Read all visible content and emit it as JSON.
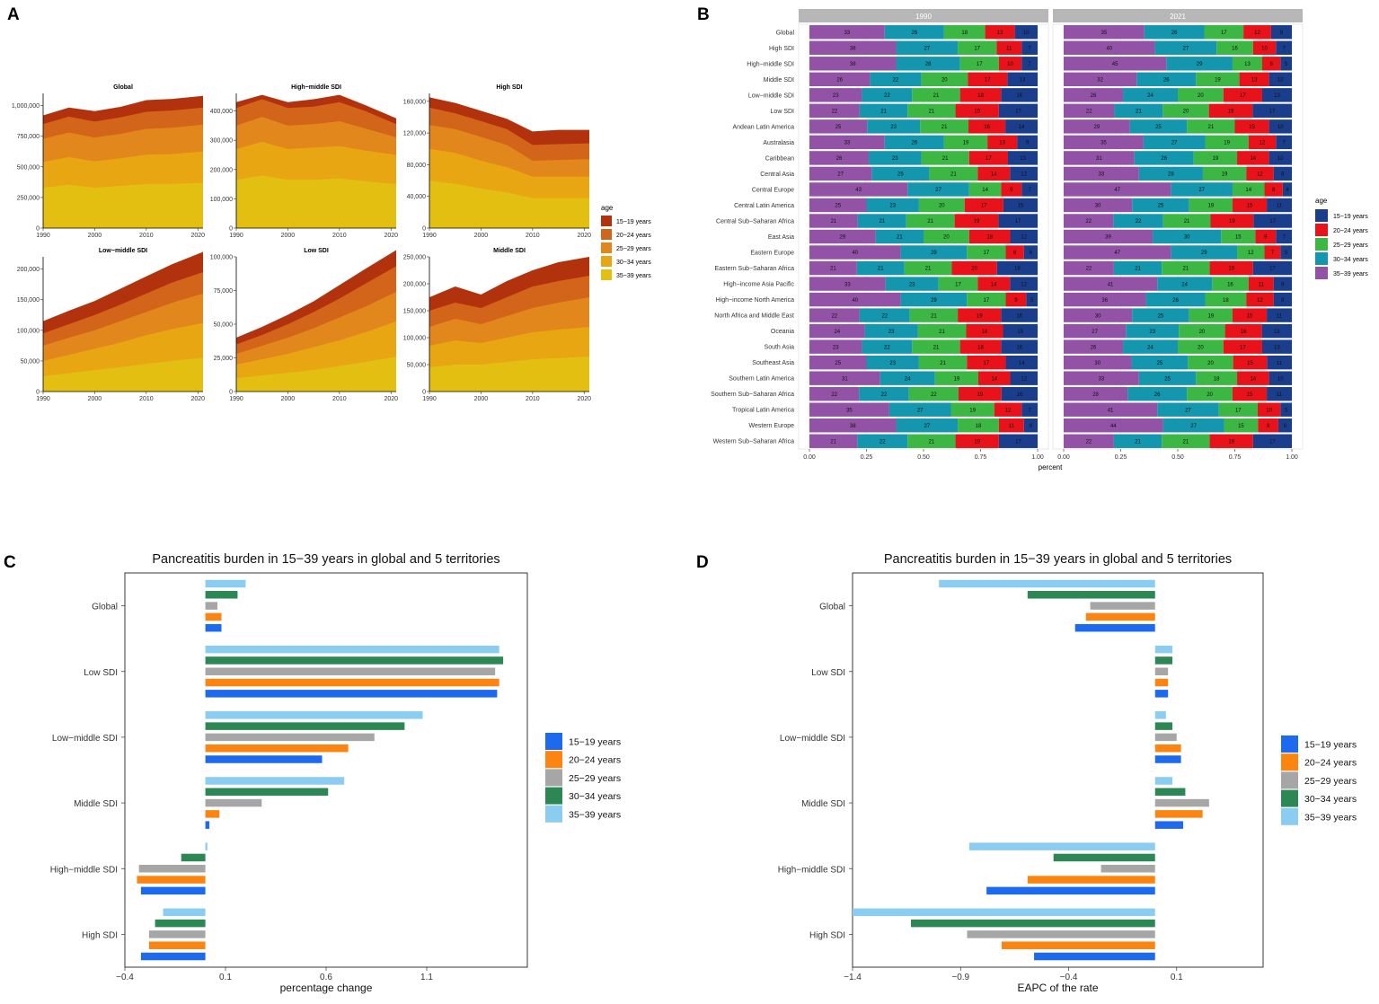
{
  "colors": {
    "age_15_19": "#B3320E",
    "age_20_24": "#D2651A",
    "age_25_29": "#E2871C",
    "age_30_34": "#E8A613",
    "age_35_39": "#E3BF12",
    "bar_15_19": "#1A3E8C",
    "bar_20_24": "#E8131A",
    "bar_25_29": "#3CB744",
    "bar_30_34": "#1496AE",
    "bar_35_39": "#9252A6",
    "c_15_19": "#1D6AEF",
    "c_20_24": "#FC8410",
    "c_25_29": "#A6A6A6",
    "c_30_34": "#2D8754",
    "c_35_39": "#8ACDF1",
    "strip": "#B7B7B7"
  },
  "chart_data": [
    {
      "panel": "A",
      "type": "area",
      "stacked": true,
      "legend_title": "age",
      "legend": [
        "15−19 years",
        "20−24 years",
        "25−29 years",
        "30−34 years",
        "35−39 years"
      ],
      "x": [
        1990,
        1995,
        2000,
        2005,
        2010,
        2015,
        2021
      ],
      "xticks": [
        "1990",
        "2000",
        "2010",
        "2020"
      ],
      "facets": [
        {
          "title": "Global",
          "ylim": [
            0,
            1100000
          ],
          "yticks": [
            "0",
            "250,000",
            "500,000",
            "750,000",
            "1,000,000"
          ],
          "ytickvals": [
            0,
            250000,
            500000,
            750000,
            1000000
          ],
          "cum": [
            [
              330000,
              355000,
              330000,
              345000,
              360000,
              360000,
              370000
            ],
            [
              540000,
              580000,
              545000,
              570000,
              600000,
              605000,
              625000
            ],
            [
              730000,
              780000,
              740000,
              770000,
              810000,
              820000,
              845000
            ],
            [
              850000,
              910000,
              870000,
              905000,
              950000,
              960000,
              985000
            ],
            [
              920000,
              985000,
              955000,
              990000,
              1045000,
              1055000,
              1080000
            ]
          ]
        },
        {
          "title": "High−middle SDI",
          "ylim": [
            0,
            460000
          ],
          "yticks": [
            "0",
            "100,000",
            "200,000",
            "300,000",
            "400,000"
          ],
          "ytickvals": [
            0,
            100000,
            200000,
            300000,
            400000
          ],
          "cum": [
            [
              165000,
              180000,
              165000,
              165000,
              170000,
              160000,
              150000
            ],
            [
              270000,
              295000,
              270000,
              275000,
              280000,
              265000,
              250000
            ],
            [
              350000,
              380000,
              350000,
              355000,
              365000,
              340000,
              310000
            ],
            [
              410000,
              440000,
              410000,
              415000,
              430000,
              400000,
              355000
            ],
            [
              430000,
              455000,
              430000,
              440000,
              455000,
              420000,
              375000
            ]
          ]
        },
        {
          "title": "High SDI",
          "ylim": [
            0,
            170000
          ],
          "yticks": [
            "0",
            "40,000",
            "80,000",
            "120,000",
            "160,000"
          ],
          "ytickvals": [
            0,
            40000,
            80000,
            120000,
            160000
          ],
          "cum": [
            [
              60000,
              56000,
              50000,
              45000,
              38000,
              38000,
              38000
            ],
            [
              100000,
              95000,
              85000,
              77000,
              65000,
              65000,
              65000
            ],
            [
              130000,
              125000,
              115000,
              105000,
              85000,
              86000,
              87000
            ],
            [
              152000,
              145000,
              135000,
              125000,
              105000,
              106000,
              107000
            ],
            [
              165000,
              158000,
              148000,
              138000,
              122000,
              124000,
              124000
            ]
          ]
        },
        {
          "title": "Low−middle SDI",
          "ylim": [
            0,
            220000
          ],
          "yticks": [
            "0",
            "50,000",
            "100,000",
            "150,000",
            "200,000"
          ],
          "ytickvals": [
            0,
            50000,
            100000,
            150000,
            200000
          ],
          "cum": [
            [
              25000,
              30000,
              35000,
              40000,
              45000,
              50000,
              55000
            ],
            [
              50000,
              60000,
              70000,
              80000,
              92000,
              102000,
              112000
            ],
            [
              75000,
              88000,
              100000,
              115000,
              130000,
              145000,
              160000
            ],
            [
              95000,
              110000,
              125000,
              142000,
              160000,
              178000,
              195000
            ],
            [
              115000,
              132000,
              148000,
              168000,
              188000,
              208000,
              228000
            ]
          ]
        },
        {
          "title": "Low SDI",
          "ylim": [
            0,
            100000
          ],
          "yticks": [
            "0",
            "25,000",
            "50,000",
            "75,000",
            "100,000"
          ],
          "ytickvals": [
            0,
            25000,
            50000,
            75000,
            100000
          ],
          "cum": [
            [
              10000,
              12000,
              14000,
              16000,
              19000,
              22000,
              26000
            ],
            [
              20000,
              24000,
              28000,
              33000,
              38000,
              44000,
              52000
            ],
            [
              28000,
              34000,
              40000,
              47000,
              55000,
              63000,
              74000
            ],
            [
              35000,
              42000,
              50000,
              59000,
              69000,
              80000,
              93000
            ],
            [
              40000,
              48000,
              57000,
              67000,
              79000,
              91000,
              105000
            ]
          ]
        },
        {
          "title": "Middle SDI",
          "ylim": [
            0,
            250000
          ],
          "yticks": [
            "0",
            "50,000",
            "100,000",
            "150,000",
            "200,000",
            "250,000"
          ],
          "ytickvals": [
            0,
            50000,
            100000,
            150000,
            200000,
            250000
          ],
          "cum": [
            [
              45000,
              50000,
              50000,
              55000,
              60000,
              62000,
              65000
            ],
            [
              85000,
              95000,
              90000,
              100000,
              110000,
              115000,
              120000
            ],
            [
              120000,
              135000,
              125000,
              140000,
              155000,
              165000,
              175000
            ],
            [
              150000,
              165000,
              155000,
              175000,
              195000,
              205000,
              215000
            ],
            [
              175000,
              195000,
              180000,
              205000,
              225000,
              240000,
              250000
            ]
          ]
        }
      ]
    },
    {
      "panel": "B",
      "type": "bar",
      "stacked": true,
      "orientation": "horizontal",
      "xlabel": "percent",
      "xlim": [
        0,
        1
      ],
      "xticks": [
        "0.00",
        "0.25",
        "0.50",
        "0.75",
        "1.00"
      ],
      "legend_title": "age",
      "legend": [
        "15−19 years",
        "20−24 years",
        "25−29 years",
        "30−34 years",
        "35−39 years"
      ],
      "segment_order": [
        "35−39 years",
        "30−34 years",
        "25−29 years",
        "20−24 years",
        "15−19 years"
      ],
      "facets": [
        "1990",
        "2021"
      ],
      "categories": [
        "Global",
        "High SDI",
        "High−middle SDI",
        "Middle SDI",
        "Low−middle SDI",
        "Low SDI",
        "Andean Latin America",
        "Australasia",
        "Caribbean",
        "Central Asia",
        "Central Europe",
        "Central Latin America",
        "Central Sub−Saharan Africa",
        "East Asia",
        "Eastern Europe",
        "Eastern Sub−Saharan Africa",
        "High−income Asia Pacific",
        "High−income North America",
        "North Africa and Middle East",
        "Oceania",
        "South Asia",
        "Southeast Asia",
        "Southern Latin America",
        "Southern Sub−Saharan Africa",
        "Tropical Latin America",
        "Western Europe",
        "Western Sub−Saharan Africa"
      ],
      "values_1990": [
        [
          33,
          26,
          18,
          13,
          10
        ],
        [
          38,
          27,
          17,
          11,
          7
        ],
        [
          38,
          28,
          17,
          10,
          7
        ],
        [
          26,
          22,
          20,
          17,
          13
        ],
        [
          23,
          22,
          21,
          18,
          16
        ],
        [
          22,
          21,
          21,
          19,
          17
        ],
        [
          25,
          23,
          21,
          16,
          14
        ],
        [
          33,
          26,
          19,
          13,
          9
        ],
        [
          26,
          23,
          21,
          17,
          13
        ],
        [
          27,
          25,
          21,
          14,
          12
        ],
        [
          43,
          27,
          14,
          9,
          7
        ],
        [
          25,
          23,
          20,
          17,
          15
        ],
        [
          21,
          21,
          21,
          19,
          17
        ],
        [
          29,
          21,
          20,
          18,
          12
        ],
        [
          40,
          29,
          17,
          8,
          6
        ],
        [
          21,
          21,
          21,
          20,
          18
        ],
        [
          33,
          23,
          17,
          14,
          12
        ],
        [
          40,
          29,
          17,
          9,
          5
        ],
        [
          22,
          22,
          21,
          19,
          16
        ],
        [
          24,
          23,
          21,
          16,
          15
        ],
        [
          23,
          22,
          21,
          18,
          16
        ],
        [
          25,
          23,
          21,
          17,
          14
        ],
        [
          31,
          24,
          19,
          14,
          12
        ],
        [
          22,
          22,
          22,
          19,
          16
        ],
        [
          35,
          27,
          19,
          12,
          7
        ],
        [
          38,
          27,
          18,
          11,
          6
        ],
        [
          21,
          22,
          21,
          19,
          17
        ]
      ],
      "values_2021": [
        [
          35,
          26,
          17,
          12,
          9
        ],
        [
          40,
          27,
          16,
          10,
          7
        ],
        [
          45,
          29,
          13,
          8,
          5
        ],
        [
          32,
          26,
          19,
          13,
          10
        ],
        [
          26,
          24,
          20,
          17,
          13
        ],
        [
          22,
          21,
          20,
          19,
          17
        ],
        [
          29,
          25,
          21,
          15,
          10
        ],
        [
          35,
          27,
          19,
          12,
          7
        ],
        [
          31,
          26,
          19,
          14,
          10
        ],
        [
          33,
          28,
          19,
          12,
          8
        ],
        [
          47,
          27,
          14,
          8,
          4
        ],
        [
          30,
          25,
          19,
          15,
          11
        ],
        [
          22,
          22,
          21,
          19,
          17
        ],
        [
          39,
          30,
          15,
          9,
          7
        ],
        [
          47,
          29,
          12,
          7,
          5
        ],
        [
          22,
          21,
          21,
          19,
          17
        ],
        [
          41,
          24,
          16,
          11,
          8
        ],
        [
          36,
          26,
          18,
          12,
          8
        ],
        [
          30,
          25,
          19,
          15,
          11
        ],
        [
          27,
          23,
          20,
          16,
          13
        ],
        [
          26,
          24,
          20,
          17,
          13
        ],
        [
          30,
          25,
          20,
          15,
          11
        ],
        [
          33,
          25,
          18,
          14,
          10
        ],
        [
          28,
          26,
          20,
          15,
          11
        ],
        [
          41,
          27,
          17,
          10,
          5
        ],
        [
          44,
          27,
          15,
          9,
          6
        ],
        [
          22,
          21,
          21,
          19,
          17
        ]
      ]
    },
    {
      "panel": "C",
      "type": "bar",
      "orientation": "horizontal",
      "title": "Pancreatitis burden in 15−39 years in global and 5 territories",
      "xlabel": "percentage change",
      "xlim": [
        -0.4,
        1.6
      ],
      "xticks": [
        "−0.4",
        "0.1",
        "0.6",
        "1.1"
      ],
      "xtickvals": [
        -0.4,
        0.1,
        0.6,
        1.1
      ],
      "legend": [
        "15−19 years",
        "20−24 years",
        "25−29 years",
        "30−34 years",
        "35−39 years"
      ],
      "categories": [
        "Global",
        "Low SDI",
        "Low−middle SDI",
        "Middle SDI",
        "High−middle SDI",
        "High SDI"
      ],
      "series": [
        {
          "name": "15−19 years",
          "values": [
            0.08,
            1.45,
            0.58,
            0.02,
            -0.32,
            -0.32
          ]
        },
        {
          "name": "20−24 years",
          "values": [
            0.08,
            1.46,
            0.71,
            0.07,
            -0.34,
            -0.28
          ]
        },
        {
          "name": "25−29 years",
          "values": [
            0.06,
            1.44,
            0.84,
            0.28,
            -0.33,
            -0.28
          ]
        },
        {
          "name": "30−34 years",
          "values": [
            0.16,
            1.48,
            0.99,
            0.61,
            -0.12,
            -0.25
          ]
        },
        {
          "name": "35−39 years",
          "values": [
            0.2,
            1.46,
            1.08,
            0.69,
            0.01,
            -0.21
          ]
        }
      ]
    },
    {
      "panel": "D",
      "type": "bar",
      "orientation": "horizontal",
      "title": "Pancreatitis burden in 15−39 years in global and 5 territories",
      "xlabel": "EAPC of the rate",
      "xlim": [
        -1.4,
        0.5
      ],
      "xticks": [
        "−1.4",
        "−0.9",
        "−0.4",
        "0.1"
      ],
      "xtickvals": [
        -1.4,
        -0.9,
        -0.4,
        0.1
      ],
      "legend": [
        "15−19 years",
        "20−24 years",
        "25−29 years",
        "30−34 years",
        "35−39 years"
      ],
      "categories": [
        "Global",
        "Low SDI",
        "Low−middle SDI",
        "Middle SDI",
        "High−middle SDI",
        "High SDI"
      ],
      "series": [
        {
          "name": "15−19 years",
          "values": [
            -0.37,
            0.06,
            0.12,
            0.13,
            -0.78,
            -0.56
          ]
        },
        {
          "name": "20−24 years",
          "values": [
            -0.32,
            0.06,
            0.12,
            0.22,
            -0.59,
            -0.71
          ]
        },
        {
          "name": "25−29 years",
          "values": [
            -0.3,
            0.06,
            0.1,
            0.25,
            -0.25,
            -0.87
          ]
        },
        {
          "name": "30−34 years",
          "values": [
            -0.59,
            0.08,
            0.08,
            0.14,
            -0.47,
            -1.13
          ]
        },
        {
          "name": "35−39 years",
          "values": [
            -1.0,
            0.08,
            0.05,
            0.08,
            -0.86,
            -1.4
          ]
        }
      ]
    }
  ],
  "panel_labels": [
    "A",
    "B",
    "C",
    "D"
  ]
}
